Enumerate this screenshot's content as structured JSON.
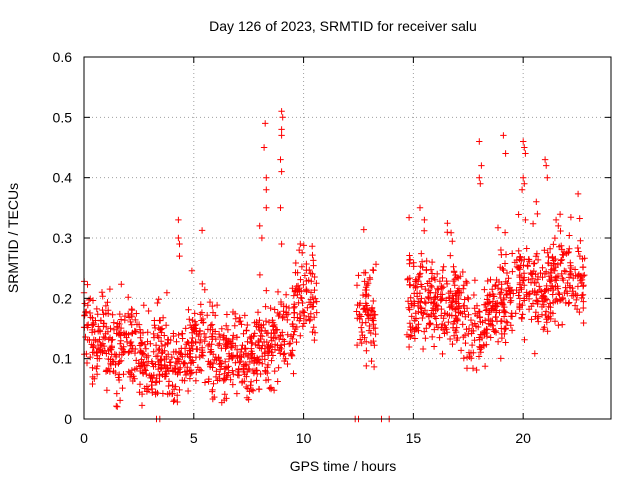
{
  "chart_data": {
    "type": "scatter",
    "title": "Day 126 of 2023, SRMTID for receiver salu",
    "xlabel": "GPS time / hours",
    "ylabel": "SRMTID / TECUs",
    "xlim": [
      0,
      24.0
    ],
    "ylim": [
      0,
      0.6
    ],
    "x_ticks": [
      0,
      5,
      10,
      15,
      20
    ],
    "x_tick_labels": [
      "0",
      "5",
      "10",
      "15",
      "20"
    ],
    "y_ticks": [
      0,
      0.1,
      0.2,
      0.3,
      0.4,
      0.5,
      0.6
    ],
    "y_tick_labels": [
      "0",
      "0.1",
      "0.2",
      "0.3",
      "0.4",
      "0.5",
      "0.6"
    ],
    "grid": true,
    "marker": "+",
    "color": "#ff0000",
    "series": [
      {
        "name": "SRMTID",
        "profile": [
          [
            0.0,
            0.15
          ],
          [
            0.5,
            0.12
          ],
          [
            1.0,
            0.14
          ],
          [
            1.5,
            0.1
          ],
          [
            2.0,
            0.13
          ],
          [
            2.5,
            0.11
          ],
          [
            3.0,
            0.09
          ],
          [
            3.5,
            0.1
          ],
          [
            4.0,
            0.09
          ],
          [
            4.5,
            0.1
          ],
          [
            5.0,
            0.13
          ],
          [
            5.5,
            0.12
          ],
          [
            6.0,
            0.09
          ],
          [
            6.5,
            0.1
          ],
          [
            7.0,
            0.11
          ],
          [
            7.5,
            0.1
          ],
          [
            8.0,
            0.12
          ],
          [
            8.5,
            0.13
          ],
          [
            9.0,
            0.15
          ],
          [
            9.5,
            0.14
          ],
          [
            9.8,
            0.19
          ],
          [
            10.4,
            0.2
          ],
          [
            12.4,
            0.18
          ],
          [
            13.2,
            0.17
          ],
          [
            14.7,
            0.19
          ],
          [
            15.5,
            0.2
          ],
          [
            16.0,
            0.19
          ],
          [
            16.5,
            0.18
          ],
          [
            17.0,
            0.19
          ],
          [
            17.5,
            0.15
          ],
          [
            18.0,
            0.14
          ],
          [
            18.5,
            0.18
          ],
          [
            19.0,
            0.19
          ],
          [
            19.5,
            0.21
          ],
          [
            20.0,
            0.22
          ],
          [
            20.5,
            0.21
          ],
          [
            21.0,
            0.2
          ],
          [
            21.5,
            0.23
          ],
          [
            22.0,
            0.24
          ],
          [
            22.8,
            0.22
          ]
        ],
        "data_segments": [
          [
            0.0,
            10.6
          ],
          [
            12.4,
            13.3
          ],
          [
            14.7,
            22.8
          ]
        ],
        "zero_points": [
          3.3,
          3.45,
          12.35,
          12.5,
          13.55,
          13.9
        ],
        "spikes": [
          [
            4.3,
            0.33
          ],
          [
            4.3,
            0.3
          ],
          [
            4.35,
            0.29
          ],
          [
            4.35,
            0.27
          ],
          [
            8.0,
            0.32
          ],
          [
            8.1,
            0.3
          ],
          [
            8.25,
            0.49
          ],
          [
            8.2,
            0.45
          ],
          [
            8.3,
            0.4
          ],
          [
            8.3,
            0.38
          ],
          [
            8.3,
            0.35
          ],
          [
            9.0,
            0.51
          ],
          [
            9.05,
            0.5
          ],
          [
            9.0,
            0.48
          ],
          [
            9.0,
            0.47
          ],
          [
            8.95,
            0.43
          ],
          [
            9.0,
            0.41
          ],
          [
            8.95,
            0.35
          ],
          [
            9.0,
            0.29
          ],
          [
            9.8,
            0.28
          ],
          [
            9.85,
            0.29
          ],
          [
            15.3,
            0.35
          ],
          [
            15.5,
            0.33
          ],
          [
            18.0,
            0.46
          ],
          [
            18.1,
            0.42
          ],
          [
            18.0,
            0.4
          ],
          [
            18.05,
            0.39
          ],
          [
            19.1,
            0.47
          ],
          [
            19.2,
            0.44
          ],
          [
            20.0,
            0.46
          ],
          [
            20.05,
            0.45
          ],
          [
            20.1,
            0.44
          ],
          [
            20.0,
            0.4
          ],
          [
            20.05,
            0.39
          ],
          [
            19.95,
            0.38
          ],
          [
            20.1,
            0.33
          ],
          [
            20.6,
            0.36
          ],
          [
            20.65,
            0.34
          ],
          [
            21.0,
            0.43
          ],
          [
            21.05,
            0.42
          ],
          [
            21.1,
            0.4
          ],
          [
            21.5,
            0.33
          ],
          [
            21.6,
            0.32
          ]
        ],
        "point_count": 1700
      }
    ]
  }
}
